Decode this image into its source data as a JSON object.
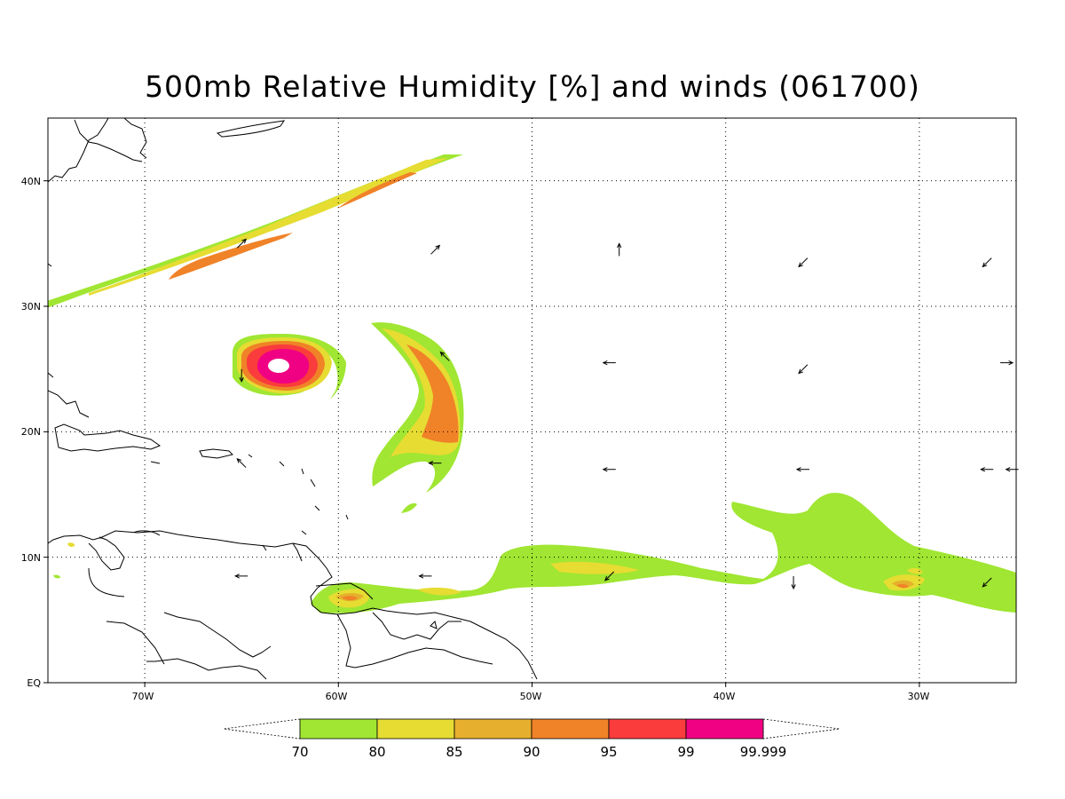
{
  "title": "500mb Relative Humidity [%] and winds (061700)",
  "colors": {
    "rh70": "#a0e632",
    "rh80": "#e6dc32",
    "rh85": "#e6af2d",
    "rh90": "#f08228",
    "rh95": "#fa3c3c",
    "rh99": "#f00082",
    "land": "#000000",
    "background": "#ffffff"
  },
  "chart_data": {
    "type": "heatmap",
    "variable": "500mb Relative Humidity",
    "units": "%",
    "lon_range": [
      -75,
      -25
    ],
    "lat_range": [
      0,
      45
    ],
    "x_ticks": [
      "70W",
      "60W",
      "50W",
      "40W",
      "30W"
    ],
    "y_ticks": [
      "EQ",
      "10N",
      "20N",
      "30N",
      "40N"
    ],
    "grid": true,
    "colorbar": {
      "levels": [
        "70",
        "80",
        "85",
        "90",
        "95",
        "99",
        "99.999"
      ],
      "colors": [
        "#a0e632",
        "#e6dc32",
        "#e6af2d",
        "#f08228",
        "#fa3c3c",
        "#f00082"
      ]
    },
    "features": [
      {
        "feature": "frontal moisture band",
        "from": [
          -75,
          29.5
        ],
        "to": [
          -53.5,
          42
        ],
        "max_rh": 95
      },
      {
        "feature": "tropical cyclone",
        "center": [
          -63,
          25
        ],
        "max_rh": 99.999
      },
      {
        "feature": "curved moisture band",
        "from": [
          -55.5,
          28.5
        ],
        "to": [
          -57,
          15
        ],
        "max_rh": 90
      },
      {
        "feature": "ITCZ band",
        "from": [
          -61.5,
          6
        ],
        "to": [
          -25,
          7
        ],
        "max_rh": 85
      }
    ],
    "winds": [
      {
        "lon": -65,
        "lat": 35,
        "dir": "NE"
      },
      {
        "lon": -55,
        "lat": 34.5,
        "dir": "NE"
      },
      {
        "lon": -45.5,
        "lat": 34.5,
        "dir": "N"
      },
      {
        "lon": -36,
        "lat": 33.5,
        "dir": "SW"
      },
      {
        "lon": -26.5,
        "lat": 33.5,
        "dir": "SW"
      },
      {
        "lon": -65,
        "lat": 24.5,
        "dir": "S"
      },
      {
        "lon": -54.5,
        "lat": 26,
        "dir": "NW"
      },
      {
        "lon": -46,
        "lat": 25.5,
        "dir": "W"
      },
      {
        "lon": -36,
        "lat": 25,
        "dir": "SW"
      },
      {
        "lon": -25.5,
        "lat": 25.5,
        "dir": "E"
      },
      {
        "lon": -65,
        "lat": 17.5,
        "dir": "NW"
      },
      {
        "lon": -55,
        "lat": 17.5,
        "dir": "W"
      },
      {
        "lon": -46,
        "lat": 17,
        "dir": "W"
      },
      {
        "lon": -36,
        "lat": 17,
        "dir": "W"
      },
      {
        "lon": -26.5,
        "lat": 17,
        "dir": "W"
      },
      {
        "lon": -25.2,
        "lat": 17,
        "dir": "W"
      },
      {
        "lon": -65,
        "lat": 8.5,
        "dir": "W"
      },
      {
        "lon": -55.5,
        "lat": 8.5,
        "dir": "W"
      },
      {
        "lon": -46,
        "lat": 8.5,
        "dir": "SW"
      },
      {
        "lon": -36.5,
        "lat": 8,
        "dir": "S"
      },
      {
        "lon": -26.5,
        "lat": 8,
        "dir": "SW"
      }
    ]
  }
}
